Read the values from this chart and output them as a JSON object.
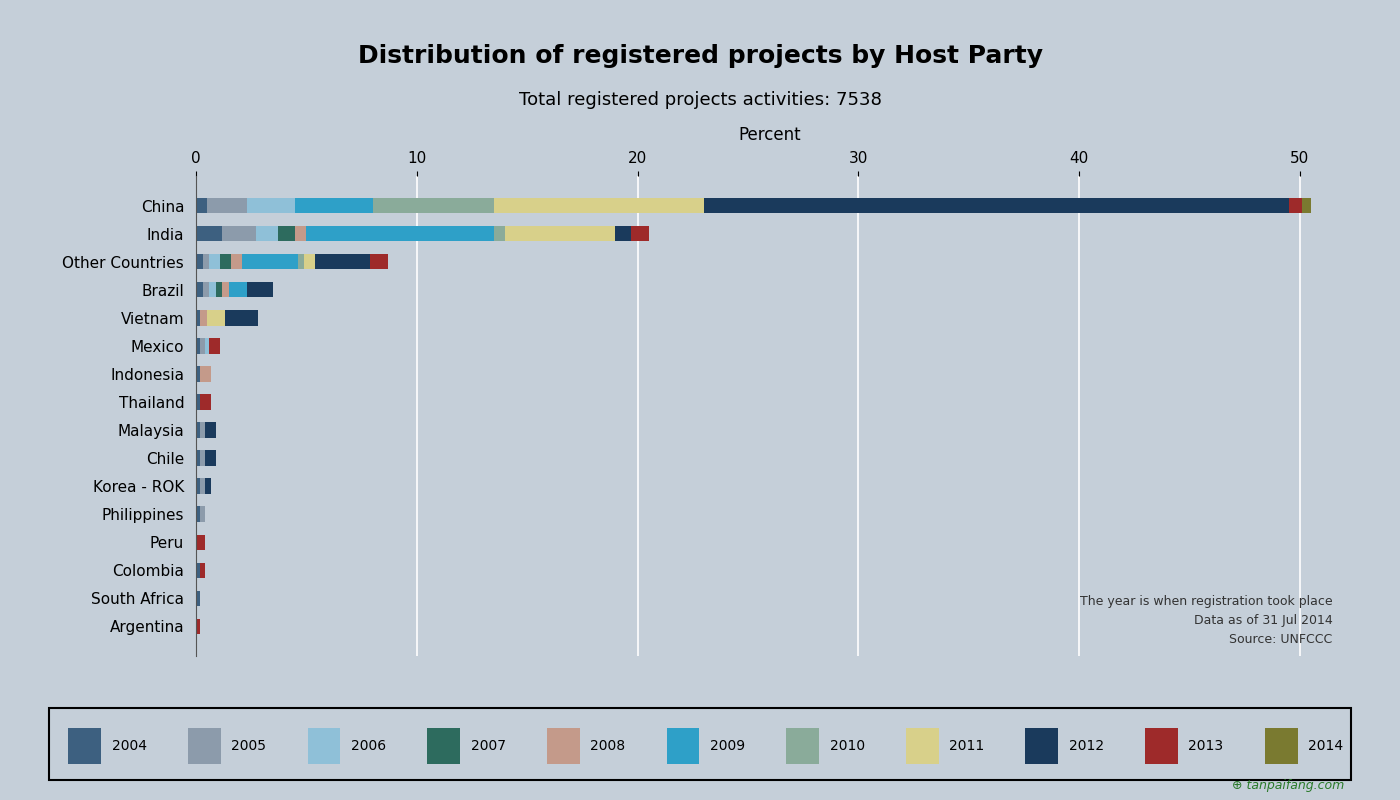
{
  "title": "Distribution of registered projects by Host Party",
  "subtitle": "Total registered projects activities: 7538",
  "xlabel": "Percent",
  "note1": "The year is when registration took place",
  "note2": "Data as of 31 Jul 2014",
  "note3": "Source: UNFCCC",
  "background_color": "#c5cfd9",
  "plot_bg_color": "#c5cfd9",
  "xlim": [
    0,
    52
  ],
  "xticks": [
    0,
    10,
    20,
    30,
    40,
    50
  ],
  "countries": [
    "China",
    "India",
    "Other Countries",
    "Brazil",
    "Vietnam",
    "Mexico",
    "Indonesia",
    "Thailand",
    "Malaysia",
    "Chile",
    "Korea - ROK",
    "Philippines",
    "Peru",
    "Colombia",
    "South Africa",
    "Argentina"
  ],
  "years": [
    "2004",
    "2005",
    "2006",
    "2007",
    "2008",
    "2009",
    "2010",
    "2011",
    "2012",
    "2013",
    "2014"
  ],
  "year_colors": {
    "2004": "#3d6080",
    "2005": "#8c9bab",
    "2006": "#8fc0d8",
    "2007": "#2d6b5e",
    "2008": "#c49a8a",
    "2009": "#2ea0c8",
    "2010": "#8aab9a",
    "2011": "#d8d08a",
    "2012": "#1a3a5c",
    "2013": "#9e2a2a",
    "2014": "#7a7a30"
  },
  "data": {
    "China": {
      "2004": 0.5,
      "2005": 1.8,
      "2006": 2.2,
      "2007": 0.0,
      "2008": 0.0,
      "2009": 3.5,
      "2010": 5.5,
      "2011": 9.5,
      "2012": 26.5,
      "2013": 0.6,
      "2014": 0.4
    },
    "India": {
      "2004": 1.2,
      "2005": 1.5,
      "2006": 1.0,
      "2007": 0.8,
      "2008": 0.5,
      "2009": 8.5,
      "2010": 0.5,
      "2011": 5.0,
      "2012": 0.7,
      "2013": 0.8,
      "2014": 0.0
    },
    "Other Countries": {
      "2004": 0.3,
      "2005": 0.3,
      "2006": 0.5,
      "2007": 0.5,
      "2008": 0.5,
      "2009": 2.5,
      "2010": 0.3,
      "2011": 0.5,
      "2012": 2.5,
      "2013": 0.8,
      "2014": 0.0
    },
    "Brazil": {
      "2004": 0.3,
      "2005": 0.3,
      "2006": 0.3,
      "2007": 0.3,
      "2008": 0.3,
      "2009": 0.8,
      "2010": 0.0,
      "2011": 0.0,
      "2012": 1.2,
      "2013": 0.0,
      "2014": 0.0
    },
    "Vietnam": {
      "2004": 0.2,
      "2005": 0.0,
      "2006": 0.0,
      "2007": 0.0,
      "2008": 0.3,
      "2009": 0.0,
      "2010": 0.0,
      "2011": 0.8,
      "2012": 1.5,
      "2013": 0.0,
      "2014": 0.0
    },
    "Mexico": {
      "2004": 0.2,
      "2005": 0.2,
      "2006": 0.2,
      "2007": 0.0,
      "2008": 0.0,
      "2009": 0.0,
      "2010": 0.0,
      "2011": 0.0,
      "2012": 0.0,
      "2013": 0.5,
      "2014": 0.0
    },
    "Indonesia": {
      "2004": 0.2,
      "2005": 0.0,
      "2006": 0.0,
      "2007": 0.0,
      "2008": 0.5,
      "2009": 0.0,
      "2010": 0.0,
      "2011": 0.0,
      "2012": 0.0,
      "2013": 0.0,
      "2014": 0.0
    },
    "Thailand": {
      "2004": 0.2,
      "2005": 0.0,
      "2006": 0.0,
      "2007": 0.0,
      "2008": 0.0,
      "2009": 0.0,
      "2010": 0.0,
      "2011": 0.0,
      "2012": 0.0,
      "2013": 0.5,
      "2014": 0.0
    },
    "Malaysia": {
      "2004": 0.2,
      "2005": 0.2,
      "2006": 0.0,
      "2007": 0.0,
      "2008": 0.0,
      "2009": 0.0,
      "2010": 0.0,
      "2011": 0.0,
      "2012": 0.5,
      "2013": 0.0,
      "2014": 0.0
    },
    "Chile": {
      "2004": 0.2,
      "2005": 0.2,
      "2006": 0.0,
      "2007": 0.0,
      "2008": 0.0,
      "2009": 0.0,
      "2010": 0.0,
      "2011": 0.0,
      "2012": 0.5,
      "2013": 0.0,
      "2014": 0.0
    },
    "Korea - ROK": {
      "2004": 0.2,
      "2005": 0.2,
      "2006": 0.0,
      "2007": 0.0,
      "2008": 0.0,
      "2009": 0.0,
      "2010": 0.0,
      "2011": 0.0,
      "2012": 0.3,
      "2013": 0.0,
      "2014": 0.0
    },
    "Philippines": {
      "2004": 0.2,
      "2005": 0.2,
      "2006": 0.0,
      "2007": 0.0,
      "2008": 0.0,
      "2009": 0.0,
      "2010": 0.0,
      "2011": 0.0,
      "2012": 0.0,
      "2013": 0.0,
      "2014": 0.0
    },
    "Peru": {
      "2004": 0.0,
      "2005": 0.0,
      "2006": 0.0,
      "2007": 0.0,
      "2008": 0.0,
      "2009": 0.0,
      "2010": 0.0,
      "2011": 0.0,
      "2012": 0.0,
      "2013": 0.4,
      "2014": 0.0
    },
    "Colombia": {
      "2004": 0.2,
      "2005": 0.0,
      "2006": 0.0,
      "2007": 0.0,
      "2008": 0.0,
      "2009": 0.0,
      "2010": 0.0,
      "2011": 0.0,
      "2012": 0.0,
      "2013": 0.2,
      "2014": 0.0
    },
    "South Africa": {
      "2004": 0.2,
      "2005": 0.0,
      "2006": 0.0,
      "2007": 0.0,
      "2008": 0.0,
      "2009": 0.0,
      "2010": 0.0,
      "2011": 0.0,
      "2012": 0.0,
      "2013": 0.0,
      "2014": 0.0
    },
    "Argentina": {
      "2004": 0.0,
      "2005": 0.0,
      "2006": 0.0,
      "2007": 0.0,
      "2008": 0.0,
      "2009": 0.0,
      "2010": 0.0,
      "2011": 0.0,
      "2012": 0.0,
      "2013": 0.2,
      "2014": 0.0
    }
  }
}
